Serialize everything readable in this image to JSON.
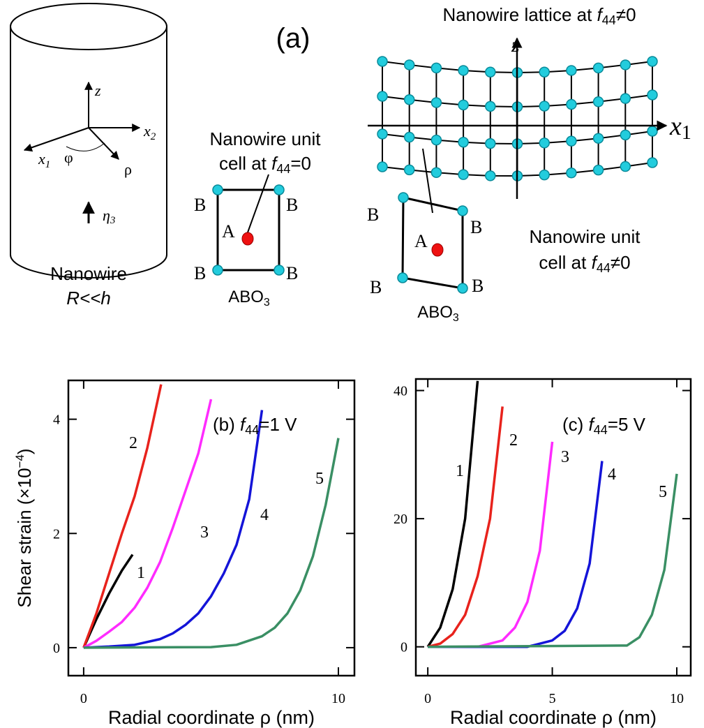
{
  "diagram": {
    "panel_label": "(a)",
    "cylinder": {
      "axis_z": "z",
      "axis_x2": [
        "x",
        "2"
      ],
      "axis_x1": [
        "x",
        "1"
      ],
      "angle": "φ",
      "radius": "ρ",
      "field": [
        "η",
        "3"
      ],
      "caption": "Nanowire",
      "condition": "R<<h"
    },
    "cell_plain": {
      "caption": [
        "Nanowire unit",
        "cell at ",
        "f",
        "44",
        "=0"
      ],
      "corner_labels": [
        "B",
        "B",
        "B",
        "B"
      ],
      "center_label": "A",
      "formula": [
        "ABO",
        "3"
      ]
    },
    "lattice": {
      "title": [
        "Nanowire lattice at ",
        "f",
        "44",
        "≠0"
      ],
      "axis_z": "z",
      "axis_x1": [
        "x",
        "1"
      ]
    },
    "cell_sheared": {
      "caption": [
        "Nanowire unit",
        "cell at ",
        "f",
        "44",
        "≠0"
      ],
      "corner_labels": [
        "B",
        "B",
        "B",
        "B"
      ],
      "center_label": "A",
      "formula": [
        "ABO",
        "3"
      ]
    }
  },
  "chart_data": [
    {
      "type": "line",
      "title": [
        "(b) ",
        "f",
        "44",
        "=1 V"
      ],
      "x_label": "Radial coordinate ρ (nm)",
      "y_label": [
        "Shear strain (×10",
        "−4",
        ")"
      ],
      "xlim": [
        -0.6,
        10.63
      ],
      "ylim": [
        -0.49,
        4.68
      ],
      "xticks": [
        0,
        10
      ],
      "yticks": [
        0,
        2,
        4
      ],
      "series": [
        {
          "name": "1",
          "color": "#000000",
          "x": [
            0,
            0.5,
            1,
            1.5,
            1.92
          ],
          "values": [
            0,
            0.5,
            0.95,
            1.35,
            1.63
          ]
        },
        {
          "name": "2",
          "color": "#e8221c",
          "x": [
            0,
            0.5,
            1,
            1.5,
            2,
            2.5,
            3.04
          ],
          "values": [
            0,
            0.6,
            1.3,
            2.0,
            2.65,
            3.5,
            4.61
          ]
        },
        {
          "name": "3",
          "color": "#ff2bff",
          "x": [
            0,
            0.5,
            1,
            1.5,
            2,
            2.5,
            3,
            3.5,
            4,
            4.5,
            5
          ],
          "values": [
            0,
            0.12,
            0.28,
            0.45,
            0.7,
            1.05,
            1.5,
            2.1,
            2.75,
            3.4,
            4.35
          ]
        },
        {
          "name": "4",
          "color": "#1414d8",
          "x": [
            0,
            1,
            2,
            3,
            3.5,
            4,
            4.5,
            5,
            5.5,
            6,
            6.5,
            7
          ],
          "values": [
            0,
            0.02,
            0.05,
            0.15,
            0.25,
            0.4,
            0.6,
            0.9,
            1.3,
            1.8,
            2.6,
            4.16
          ]
        },
        {
          "name": "5",
          "color": "#3a8f64",
          "x": [
            0,
            5,
            6,
            7,
            7.5,
            8,
            8.5,
            9,
            9.5,
            10
          ],
          "values": [
            0,
            0.01,
            0.05,
            0.2,
            0.35,
            0.6,
            1.0,
            1.6,
            2.5,
            3.67
          ]
        }
      ]
    },
    {
      "type": "line",
      "title": [
        "(c) ",
        "f",
        "44",
        "=5 V"
      ],
      "x_label": "Radial coordinate ρ (nm)",
      "xlim": [
        -0.48,
        10.56
      ],
      "ylim": [
        -4.5,
        41.8
      ],
      "xticks": [
        0,
        5,
        10
      ],
      "yticks": [
        0,
        20,
        40
      ],
      "series": [
        {
          "name": "1",
          "color": "#000000",
          "x": [
            0,
            0.5,
            1,
            1.5,
            2
          ],
          "values": [
            0,
            3,
            9,
            20,
            41.5
          ]
        },
        {
          "name": "2",
          "color": "#e8221c",
          "x": [
            0,
            0.5,
            1,
            1.5,
            2,
            2.5,
            3
          ],
          "values": [
            0,
            0.5,
            2,
            5,
            11,
            20,
            37.5
          ]
        },
        {
          "name": "3",
          "color": "#ff2bff",
          "x": [
            0,
            2,
            3,
            3.5,
            4,
            4.5,
            5
          ],
          "values": [
            0,
            0,
            1,
            3,
            7,
            15,
            32
          ]
        },
        {
          "name": "4",
          "color": "#1414d8",
          "x": [
            0,
            4,
            5,
            5.5,
            6,
            6.5,
            7
          ],
          "values": [
            0,
            0,
            1,
            2.5,
            6,
            13,
            29
          ]
        },
        {
          "name": "5",
          "color": "#3a8f64",
          "x": [
            0,
            8,
            8.5,
            9,
            9.5,
            10
          ],
          "values": [
            0,
            0.2,
            1.5,
            5,
            12,
            27
          ]
        }
      ]
    }
  ]
}
